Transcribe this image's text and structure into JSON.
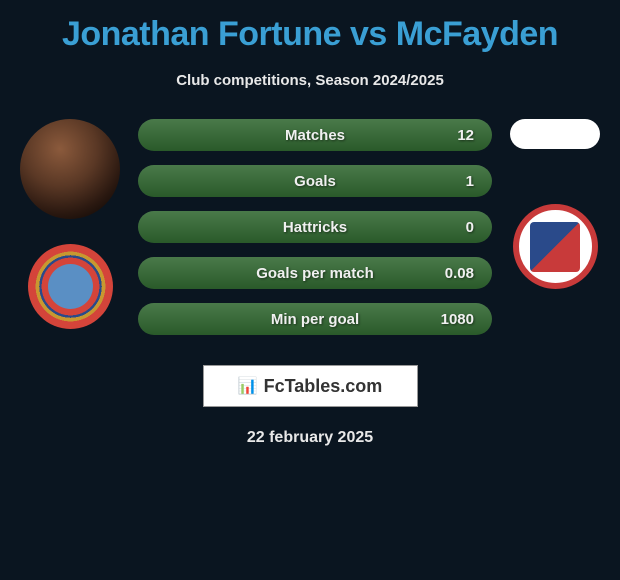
{
  "title": "Jonathan Fortune vs McFayden",
  "subtitle": "Club competitions, Season 2024/2025",
  "stats": [
    {
      "label": "Matches",
      "value": "12"
    },
    {
      "label": "Goals",
      "value": "1"
    },
    {
      "label": "Hattricks",
      "value": "0"
    },
    {
      "label": "Goals per match",
      "value": "0.08"
    },
    {
      "label": "Min per goal",
      "value": "1080"
    }
  ],
  "brand": "FcTables.com",
  "date": "22 february 2025",
  "colors": {
    "background": "#0a1520",
    "title": "#3a9fd4",
    "text": "#e8e8e8",
    "pill_gradient_top": "#4a7a4a",
    "pill_gradient_bottom": "#2a5a2a"
  }
}
